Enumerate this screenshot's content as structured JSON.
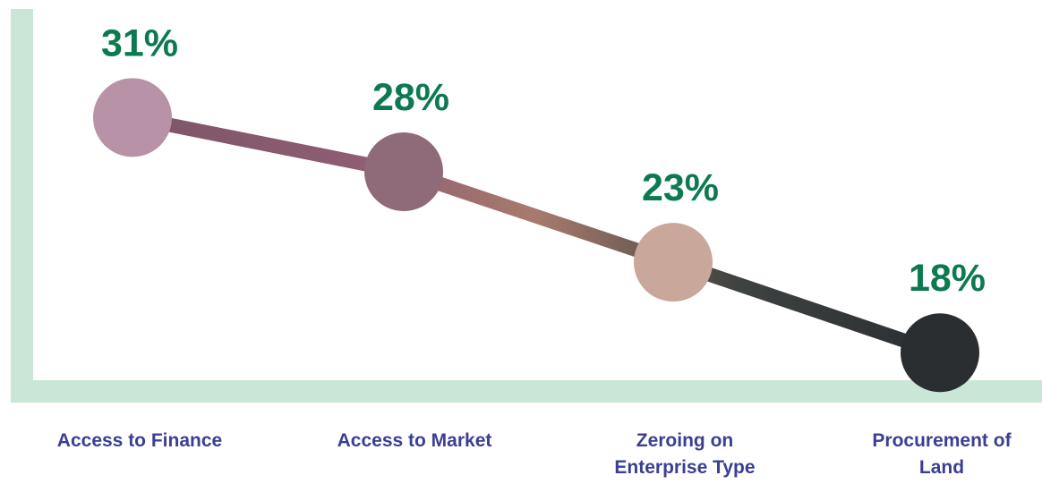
{
  "chart_data": {
    "type": "line",
    "categories": [
      "Access to Finance",
      "Access to Market",
      "Zeroing on Enterprise Type",
      "Procurement of Land"
    ],
    "category_labels": [
      "Access to Finance",
      "Access to Market",
      "Zeroing on\nEnterprise Type",
      "Procurement of\nLand"
    ],
    "values": [
      31,
      28,
      23,
      18
    ],
    "data_labels": [
      "31%",
      "28%",
      "23%",
      "18%"
    ],
    "ylim": [
      10,
      37
    ],
    "grid": false,
    "legend": "none"
  },
  "colors": {
    "axis": "#c9e6d6",
    "value_label": "#0c7a4e",
    "category_label": "#3b3f94",
    "line": "#2b2e31",
    "marker_fills": [
      "#b892a6",
      "#8f6a79",
      "#c9a79a",
      "#2b2e31"
    ]
  }
}
